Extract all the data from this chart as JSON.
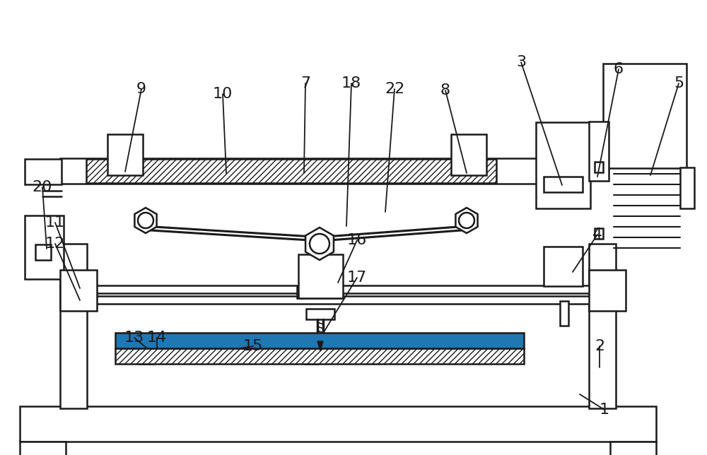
{
  "bg_color": "#ffffff",
  "line_color": "#1a1a1a",
  "line_width": 1.8,
  "font_size": 16,
  "figsize": [
    10.0,
    6.44
  ],
  "dpi": 100,
  "labels": [
    [
      1,
      855,
      580,
      820,
      558
    ],
    [
      2,
      848,
      490,
      848,
      520
    ],
    [
      3,
      737,
      88,
      795,
      262
    ],
    [
      4,
      845,
      332,
      810,
      385
    ],
    [
      5,
      960,
      118,
      920,
      248
    ],
    [
      6,
      875,
      98,
      845,
      250
    ],
    [
      7,
      432,
      118,
      430,
      245
    ],
    [
      8,
      630,
      128,
      660,
      245
    ],
    [
      9,
      200,
      126,
      177,
      243
    ],
    [
      10,
      315,
      133,
      320,
      245
    ],
    [
      11,
      78,
      315,
      113,
      408
    ],
    [
      12,
      78,
      345,
      113,
      425
    ],
    [
      13,
      190,
      478,
      208,
      493
    ],
    [
      14,
      222,
      478,
      222,
      493
    ],
    [
      15,
      358,
      490,
      340,
      493
    ],
    [
      16,
      505,
      340,
      478,
      400
    ],
    [
      17,
      505,
      393,
      458,
      470
    ],
    [
      18,
      497,
      118,
      490,
      320
    ],
    [
      20,
      60,
      265,
      66,
      352
    ],
    [
      22,
      558,
      126,
      545,
      300
    ]
  ]
}
